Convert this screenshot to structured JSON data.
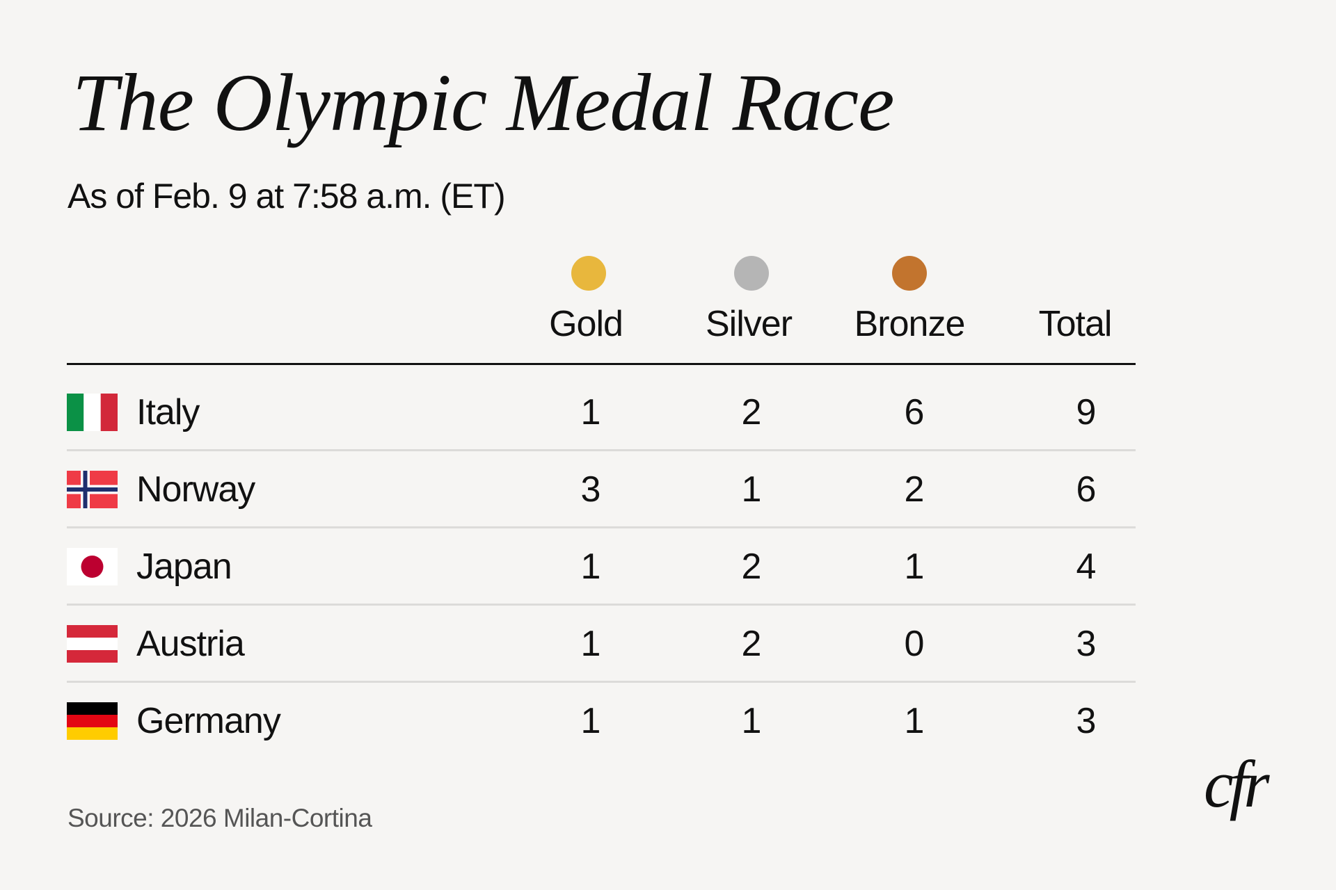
{
  "title": "The Olympic Medal Race",
  "subtitle": "As of Feb. 9 at 7:58 a.m. (ET)",
  "source": "Source: 2026 Milan-Cortina",
  "logo_text": "cfr",
  "colors": {
    "gold": "#e8b73d",
    "silver": "#b5b5b5",
    "bronze": "#c2742e",
    "background": "#f6f5f3"
  },
  "chart_data": {
    "type": "table",
    "columns": [
      "Gold",
      "Silver",
      "Bronze",
      "Total"
    ],
    "rows": [
      {
        "country": "Italy",
        "flag": "italy-flag",
        "values": [
          "1",
          "2",
          "6",
          "9"
        ]
      },
      {
        "country": "Norway",
        "flag": "norway-flag",
        "values": [
          "3",
          "1",
          "2",
          "6"
        ]
      },
      {
        "country": "Japan",
        "flag": "japan-flag",
        "values": [
          "1",
          "2",
          "1",
          "4"
        ]
      },
      {
        "country": "Austria",
        "flag": "austria-flag",
        "values": [
          "1",
          "2",
          "0",
          "3"
        ]
      },
      {
        "country": "Germany",
        "flag": "germany-flag",
        "values": [
          "1",
          "1",
          "1",
          "3"
        ]
      }
    ]
  }
}
